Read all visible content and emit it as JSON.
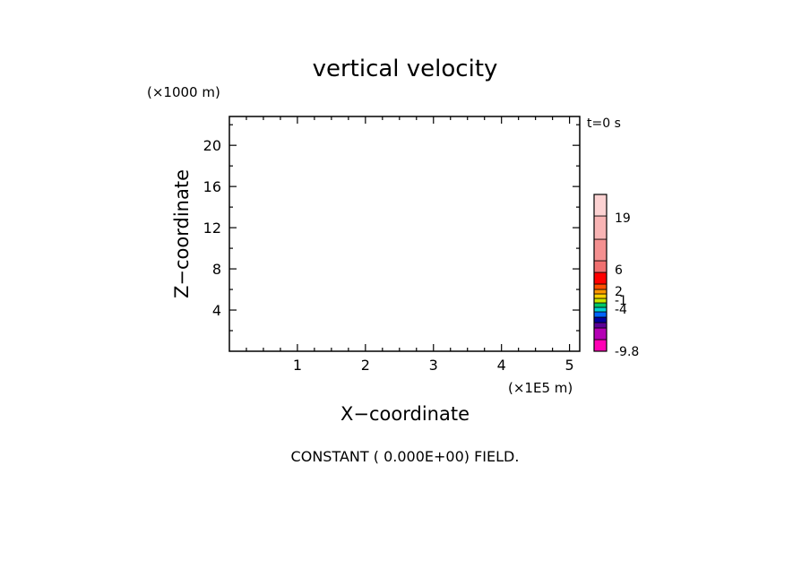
{
  "chart_data": {
    "type": "heatmap",
    "title": "vertical velocity",
    "xlabel": "X−coordinate",
    "ylabel": "Z−coordinate",
    "x_unit": "(×1E5 m)",
    "y_unit": "(×1000 m)",
    "time_label": "t=0 s",
    "footer": "CONSTANT ( 0.000E+00) FIELD.",
    "xlim": [
      0,
      5.15
    ],
    "ylim": [
      0,
      22.8
    ],
    "x_major_ticks": [
      1,
      2,
      3,
      4,
      5
    ],
    "x_tick_labels": [
      "1",
      "2",
      "3",
      "4",
      "5"
    ],
    "x_minor_step": 0.25,
    "y_major_ticks": [
      4,
      8,
      12,
      16,
      20
    ],
    "y_tick_labels": [
      "4",
      "8",
      "12",
      "16",
      "20"
    ],
    "y_minor_step": 2,
    "field_value": 0.0,
    "grid": false,
    "colorbar": {
      "levels": [
        {
          "color": "#ff00b4"
        },
        {
          "color": "#b400b4"
        },
        {
          "color": "#5a0096"
        },
        {
          "color": "#0000a0"
        },
        {
          "color": "#0064ff"
        },
        {
          "color": "#00d2d2"
        },
        {
          "color": "#00c864"
        },
        {
          "color": "#c8e600"
        },
        {
          "color": "#ffd200"
        },
        {
          "color": "#ff9600"
        },
        {
          "color": "#ff5000"
        },
        {
          "color": "#ff0000"
        },
        {
          "color": "#f07070"
        },
        {
          "color": "#f49090"
        },
        {
          "color": "#f8b4b4"
        },
        {
          "color": "#fcd2d2"
        }
      ],
      "labels": [
        {
          "text": "-9.8",
          "level": 0
        },
        {
          "text": "-4",
          "level": 4
        },
        {
          "text": "-1",
          "level": 6
        },
        {
          "text": "2",
          "level": 8
        },
        {
          "text": "6",
          "level": 11
        },
        {
          "text": "19",
          "level": 15
        }
      ]
    }
  }
}
